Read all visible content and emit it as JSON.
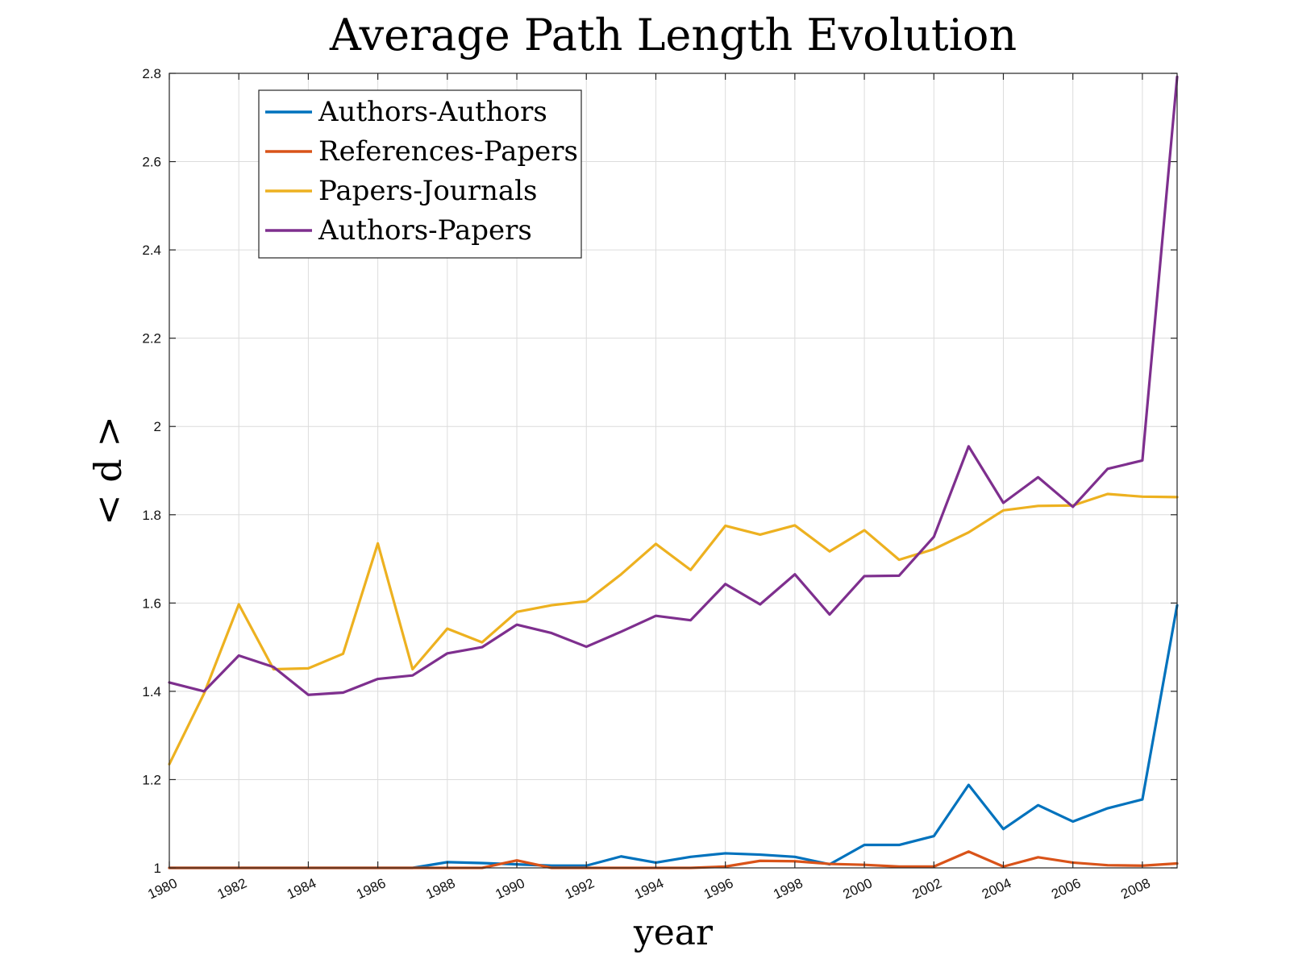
{
  "chart_data": {
    "type": "line",
    "title": "Average Path Length Evolution",
    "xlabel": "year",
    "ylabel": "< d >",
    "xlim": [
      1980,
      2009
    ],
    "ylim": [
      1,
      2.8
    ],
    "grid": true,
    "legend_position": "top-left",
    "x_tick_values": [
      1980,
      1982,
      1984,
      1986,
      1988,
      1990,
      1992,
      1994,
      1996,
      1998,
      2000,
      2002,
      2004,
      2006,
      2008
    ],
    "x_tick_labels": [
      "1980",
      "1982",
      "1984",
      "1986",
      "1988",
      "1990",
      "1992",
      "1994",
      "1996",
      "1998",
      "2000",
      "2002",
      "2004",
      "2006",
      "2008"
    ],
    "y_tick_values": [
      1,
      1.2,
      1.4,
      1.6,
      1.8,
      2,
      2.2,
      2.4,
      2.6,
      2.8
    ],
    "y_tick_labels": [
      "1",
      "1.2",
      "1.4",
      "1.6",
      "1.8",
      "2",
      "2.2",
      "2.4",
      "2.6",
      "2.8"
    ],
    "x": [
      1980,
      1981,
      1982,
      1983,
      1984,
      1985,
      1986,
      1987,
      1988,
      1989,
      1990,
      1991,
      1992,
      1993,
      1994,
      1995,
      1996,
      1997,
      1998,
      1999,
      2000,
      2001,
      2002,
      2003,
      2004,
      2005,
      2006,
      2007,
      2008,
      2009
    ],
    "series": [
      {
        "name": "Authors-Authors",
        "color": "#0072BD",
        "values": [
          1.0,
          1.0,
          1.0,
          1.0,
          1.0,
          1.0,
          1.0,
          1.0,
          1.013,
          1.011,
          1.008,
          1.005,
          1.005,
          1.026,
          1.012,
          1.025,
          1.033,
          1.03,
          1.025,
          1.008,
          1.052,
          1.052,
          1.072,
          1.188,
          1.088,
          1.142,
          1.105,
          1.135,
          1.155,
          1.595
        ]
      },
      {
        "name": "References-Papers",
        "color": "#D95319",
        "values": [
          1.0,
          1.0,
          1.0,
          1.0,
          1.0,
          1.0,
          1.0,
          1.0,
          1.0,
          1.0,
          1.017,
          1.0,
          1.0,
          1.0,
          1.0,
          1.0,
          1.003,
          1.016,
          1.015,
          1.009,
          1.007,
          1.003,
          1.003,
          1.037,
          1.003,
          1.024,
          1.012,
          1.006,
          1.005,
          1.01
        ]
      },
      {
        "name": "Papers-Journals",
        "color": "#EDB120",
        "values": [
          1.235,
          1.395,
          1.597,
          1.45,
          1.452,
          1.485,
          1.735,
          1.45,
          1.542,
          1.511,
          1.58,
          1.595,
          1.604,
          1.665,
          1.734,
          1.675,
          1.775,
          1.755,
          1.776,
          1.717,
          1.765,
          1.698,
          1.722,
          1.76,
          1.81,
          1.82,
          1.821,
          1.847,
          1.841,
          1.84
        ]
      },
      {
        "name": "Authors-Papers",
        "color": "#7E2F8E",
        "values": [
          1.42,
          1.4,
          1.481,
          1.455,
          1.392,
          1.397,
          1.428,
          1.436,
          1.486,
          1.5,
          1.551,
          1.532,
          1.501,
          1.535,
          1.571,
          1.561,
          1.643,
          1.597,
          1.665,
          1.574,
          1.661,
          1.662,
          1.75,
          1.955,
          1.827,
          1.885,
          1.818,
          1.904,
          1.923,
          2.792
        ]
      }
    ]
  }
}
